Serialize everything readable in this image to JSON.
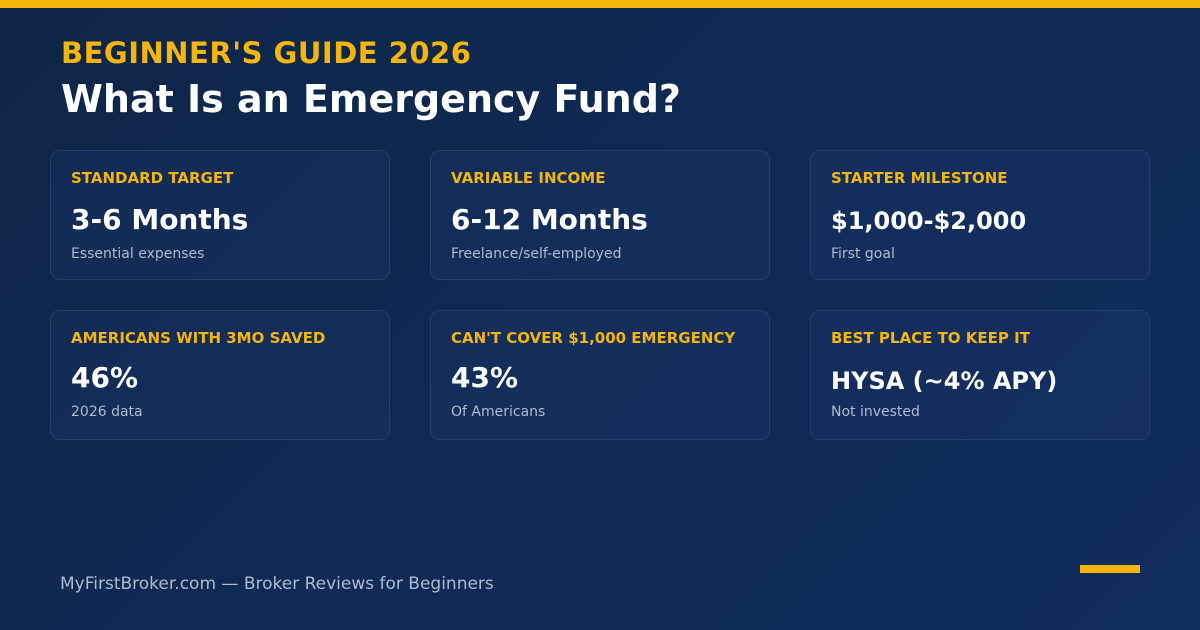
{
  "header": {
    "eyebrow": "BEGINNER'S GUIDE 2026",
    "title": "What Is an Emergency Fund?"
  },
  "cards": [
    {
      "label": "STANDARD TARGET",
      "value": "3-6 Months",
      "note": "Essential expenses"
    },
    {
      "label": "VARIABLE INCOME",
      "value": "6-12 Months",
      "note": "Freelance/self-employed"
    },
    {
      "label": "STARTER MILESTONE",
      "value": "$1,000-$2,000",
      "note": "First goal"
    },
    {
      "label": "AMERICANS WITH 3MO SAVED",
      "value": "46%",
      "note": "2026 data"
    },
    {
      "label": "CAN'T COVER $1,000 EMERGENCY",
      "value": "43%",
      "note": "Of Americans"
    },
    {
      "label": "BEST PLACE TO KEEP IT",
      "value": "HYSA (~4% APY)",
      "note": "Not invested"
    }
  ],
  "footer": {
    "text": "MyFirstBroker.com — Broker Reviews for Beginners"
  },
  "colors": {
    "accent": "#f5b50a",
    "background": "#0f2a54",
    "text_primary": "#ffffff",
    "text_muted": "#aebbd0"
  }
}
